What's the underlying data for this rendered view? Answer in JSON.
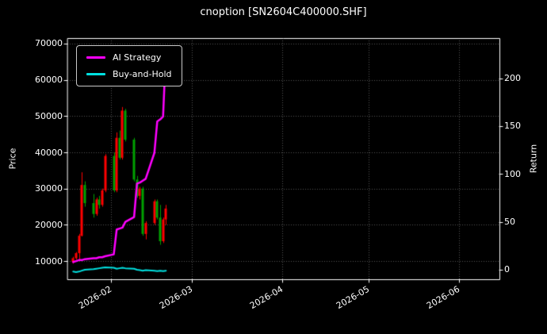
{
  "chart_data": {
    "type": "candlestick",
    "title": "cnoption [SN2604C400000.SHF]",
    "background_color": "#000000",
    "text_color": "#ffffff",
    "grid_color": "#555555",
    "grid_style": "dotted",
    "left_axis": {
      "label": "Price",
      "ticks": [
        10000,
        20000,
        30000,
        40000,
        50000,
        60000,
        70000
      ],
      "range": [
        5000,
        71500
      ]
    },
    "right_axis": {
      "label": "Return",
      "ticks": [
        0,
        50,
        100,
        150,
        200
      ],
      "range": [
        -10,
        242
      ]
    },
    "x_axis": {
      "start": "2026-01-17",
      "end": "2026-06-15",
      "ticks": [
        {
          "date": "2026-02-01",
          "label": "2026-02"
        },
        {
          "date": "2026-03-01",
          "label": "2026-03"
        },
        {
          "date": "2026-04-01",
          "label": "2026-04"
        },
        {
          "date": "2026-05-01",
          "label": "2026-05"
        },
        {
          "date": "2026-06-01",
          "label": "2026-06"
        }
      ]
    },
    "dates": [
      "2026-01-19",
      "2026-01-20",
      "2026-01-21",
      "2026-01-22",
      "2026-01-23",
      "2026-01-26",
      "2026-01-27",
      "2026-01-28",
      "2026-01-29",
      "2026-01-30",
      "2026-02-02",
      "2026-02-03",
      "2026-02-04",
      "2026-02-05",
      "2026-02-06",
      "2026-02-09",
      "2026-02-10",
      "2026-02-11",
      "2026-02-12",
      "2026-02-13",
      "2026-02-16",
      "2026-02-17",
      "2026-02-18",
      "2026-02-19",
      "2026-02-20"
    ],
    "candles": {
      "up_color": "#ff0000",
      "down_color": "#00a000",
      "ohlc": [
        [
          "2026-01-19",
          9800,
          11200,
          9300,
          10800
        ],
        [
          "2026-01-20",
          10800,
          12500,
          10400,
          12200
        ],
        [
          "2026-01-21",
          12200,
          17500,
          10000,
          17000
        ],
        [
          "2026-01-22",
          17000,
          34500,
          16800,
          31000
        ],
        [
          "2026-01-23",
          31000,
          32000,
          25000,
          26000
        ],
        [
          "2026-01-26",
          26000,
          28500,
          22000,
          23000
        ],
        [
          "2026-01-27",
          23000,
          27500,
          22500,
          27000
        ],
        [
          "2026-01-28",
          27000,
          28000,
          24500,
          25500
        ],
        [
          "2026-01-29",
          25500,
          30000,
          25000,
          29500
        ],
        [
          "2026-01-30",
          29500,
          39500,
          29000,
          39000
        ],
        [
          "2026-02-02",
          39000,
          40000,
          29000,
          29500
        ],
        [
          "2026-02-03",
          29500,
          45500,
          29000,
          44000
        ],
        [
          "2026-02-04",
          44000,
          46000,
          38000,
          38500
        ],
        [
          "2026-02-05",
          38500,
          52500,
          38000,
          51500
        ],
        [
          "2026-02-06",
          51500,
          52000,
          43000,
          43500
        ],
        [
          "2026-02-09",
          43500,
          44000,
          32000,
          32500
        ],
        [
          "2026-02-10",
          32500,
          33500,
          27500,
          28000
        ],
        [
          "2026-02-11",
          28000,
          30500,
          27000,
          30000
        ],
        [
          "2026-02-12",
          30000,
          30500,
          17000,
          17500
        ],
        [
          "2026-02-13",
          17500,
          21000,
          16000,
          20500
        ],
        [
          "2026-02-16",
          20500,
          27000,
          20000,
          26500
        ],
        [
          "2026-02-17",
          26500,
          27000,
          21500,
          22000
        ],
        [
          "2026-02-18",
          22000,
          25500,
          14500,
          15500
        ],
        [
          "2026-02-19",
          15500,
          22000,
          15000,
          21500
        ],
        [
          "2026-02-20",
          21500,
          25500,
          20000,
          24500
        ]
      ]
    },
    "series": [
      {
        "name": "AI Strategy",
        "color": "#ff00ff",
        "axis": "right",
        "line_width": 2.5,
        "values": [
          8,
          9,
          10,
          10,
          11,
          12,
          12,
          13,
          13,
          14,
          16,
          42,
          43,
          44,
          50,
          55,
          90,
          91,
          93,
          95,
          122,
          155,
          157,
          160,
          230
        ]
      },
      {
        "name": "Buy-and-Hold",
        "color": "#00e0e0",
        "axis": "right",
        "line_width": 2,
        "values": [
          -2,
          -2.5,
          -2,
          -1,
          0,
          0.5,
          1,
          1.5,
          2,
          2.5,
          2,
          1,
          1.5,
          2,
          1.5,
          1,
          0,
          -0.5,
          -1,
          -0.5,
          -1,
          -1.5,
          -1,
          -1.5,
          -1
        ]
      }
    ],
    "legend": {
      "position": "upper-left",
      "entries": [
        {
          "label": "AI Strategy",
          "color": "#ff00ff"
        },
        {
          "label": "Buy-and-Hold",
          "color": "#00e0e0"
        }
      ]
    }
  }
}
